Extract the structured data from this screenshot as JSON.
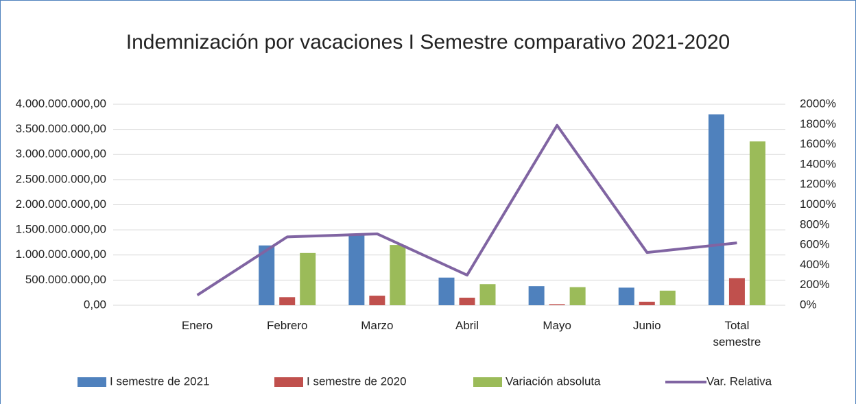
{
  "chart_data": {
    "type": "bar",
    "title": "Indemnización por vacaciones I Semestre comparativo 2021-2020",
    "categories": [
      "Enero",
      "Febrero",
      "Marzo",
      "Abril",
      "Mayo",
      "Junio",
      "Total semestre"
    ],
    "series": [
      {
        "name": "I semestre de 2021",
        "type": "bar",
        "color": "#4f81bd",
        "values": [
          0,
          1190000000,
          1400000000,
          550000000,
          380000000,
          350000000,
          3800000000
        ]
      },
      {
        "name": "I semestre de 2020",
        "type": "bar",
        "color": "#c0504d",
        "values": [
          0,
          160000000,
          190000000,
          150000000,
          20000000,
          70000000,
          540000000
        ]
      },
      {
        "name": "Variación absoluta",
        "type": "bar",
        "color": "#9bbb59",
        "values": [
          0,
          1040000000,
          1200000000,
          420000000,
          360000000,
          290000000,
          3260000000
        ]
      },
      {
        "name": "Var. Relativa",
        "type": "line",
        "axis": "y2",
        "color": "#8064a2",
        "values": [
          100,
          680,
          710,
          300,
          1790,
          525,
          620
        ]
      }
    ],
    "ylim": [
      0,
      4000000000
    ],
    "yticks": [
      {
        "value": 0,
        "label": "0,00"
      },
      {
        "value": 500000000,
        "label": "500.000.000,00"
      },
      {
        "value": 1000000000,
        "label": "1.000.000.000,00"
      },
      {
        "value": 1500000000,
        "label": "1.500.000.000,00"
      },
      {
        "value": 2000000000,
        "label": "2.000.000.000,00"
      },
      {
        "value": 2500000000,
        "label": "2.500.000.000,00"
      },
      {
        "value": 3000000000,
        "label": "3.000.000.000,00"
      },
      {
        "value": 3500000000,
        "label": "3.500.000.000,00"
      },
      {
        "value": 4000000000,
        "label": "4.000.000.000,00"
      }
    ],
    "y2lim": [
      0,
      2000
    ],
    "y2ticks": [
      {
        "value": 0,
        "label": "0%"
      },
      {
        "value": 200,
        "label": "200%"
      },
      {
        "value": 400,
        "label": "400%"
      },
      {
        "value": 600,
        "label": "600%"
      },
      {
        "value": 800,
        "label": "800%"
      },
      {
        "value": 1000,
        "label": "1000%"
      },
      {
        "value": 1200,
        "label": "1200%"
      },
      {
        "value": 1400,
        "label": "1400%"
      },
      {
        "value": 1600,
        "label": "1600%"
      },
      {
        "value": 1800,
        "label": "1800%"
      },
      {
        "value": 2000,
        "label": "2000%"
      }
    ],
    "grid": true,
    "legend": "bottom"
  }
}
